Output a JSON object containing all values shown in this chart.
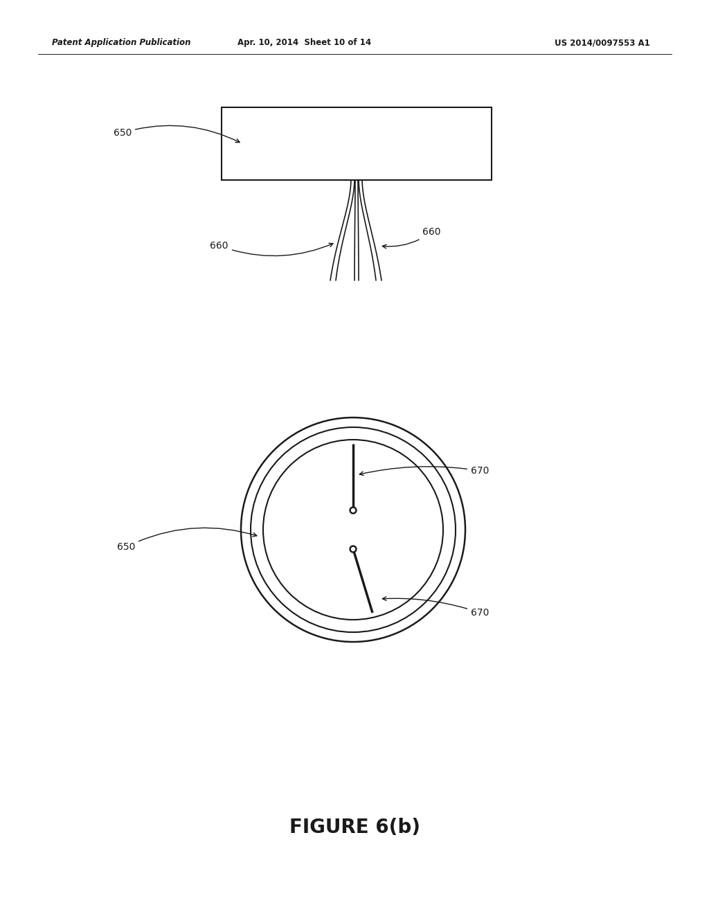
{
  "bg_color": "#ffffff",
  "header_left": "Patent Application Publication",
  "header_mid": "Apr. 10, 2014  Sheet 10 of 14",
  "header_right": "US 2014/0097553 A1",
  "figure_label": "FIGURE 6(b)",
  "line_color": "#1a1a1a",
  "text_color": "#1a1a1a",
  "header_fontsize": 8.5,
  "label_fontsize": 10,
  "figure_label_fontsize": 20
}
